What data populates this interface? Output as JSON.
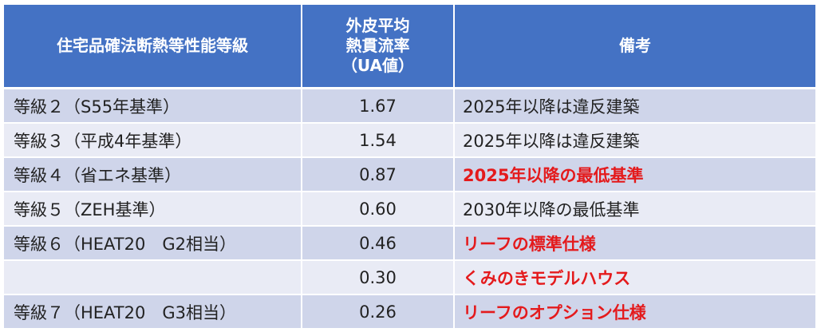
{
  "table": {
    "headers": {
      "grade": "住宅品確法断熱等性能等級",
      "ua_lines": [
        "外皮平均",
        "熱貫流率",
        "（UA値）"
      ],
      "note": "備考"
    },
    "highlight_color": "#e41a1c",
    "header_color": "#4472c4",
    "rows": [
      {
        "grade": "等級２（S55年基準）",
        "ua": "1.67",
        "note": "2025年以降は違反建築",
        "highlight": false
      },
      {
        "grade": "等級３（平成4年基準）",
        "ua": "1.54",
        "note": "2025年以降は違反建築",
        "highlight": false
      },
      {
        "grade": "等級４（省エネ基準）",
        "ua": "0.87",
        "note": "2025年以降の最低基準",
        "highlight": true
      },
      {
        "grade": "等級５（ZEH基準）",
        "ua": "0.60",
        "note": "2030年以降の最低基準",
        "highlight": false
      },
      {
        "grade": "等級６（HEAT20　G2相当）",
        "ua": "0.46",
        "note": "リーフの標準仕様",
        "highlight": true
      },
      {
        "grade": "",
        "ua": "0.30",
        "note": "くみのきモデルハウス",
        "highlight": true
      },
      {
        "grade": "等級７（HEAT20　G3相当）",
        "ua": "0.26",
        "note": "リーフのオプション仕様",
        "highlight": true
      }
    ]
  }
}
